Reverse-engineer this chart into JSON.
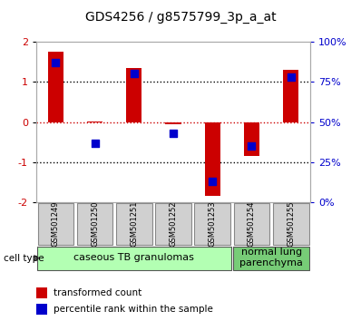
{
  "title": "GDS4256 / g8575799_3p_a_at",
  "samples": [
    "GSM501249",
    "GSM501250",
    "GSM501251",
    "GSM501252",
    "GSM501253",
    "GSM501254",
    "GSM501255"
  ],
  "transformed_counts": [
    1.75,
    0.02,
    1.35,
    -0.05,
    -1.85,
    -0.85,
    1.3
  ],
  "percentile_ranks": [
    87,
    37,
    80,
    43,
    13,
    35,
    78
  ],
  "ylim": [
    -2,
    2
  ],
  "yticks_left": [
    -2,
    -1,
    0,
    1,
    2
  ],
  "yticks_right": [
    0,
    25,
    50,
    75,
    100
  ],
  "bar_color": "#cc0000",
  "dot_color": "#0000cc",
  "groups": [
    {
      "label": "caseous TB granulomas",
      "start": 0,
      "end": 5,
      "color": "#b3ffb3"
    },
    {
      "label": "normal lung\nparenchyma",
      "start": 5,
      "end": 7,
      "color": "#77cc77"
    }
  ],
  "legend_items": [
    {
      "label": "transformed count",
      "color": "#cc0000"
    },
    {
      "label": "percentile rank within the sample",
      "color": "#0000cc"
    }
  ],
  "cell_type_label": "cell type",
  "bar_width": 0.4,
  "dot_size": 40,
  "tick_color_left": "#cc0000",
  "tick_color_right": "#0000cc",
  "title_fontsize": 10,
  "tick_fontsize": 8,
  "legend_fontsize": 7.5,
  "sample_fontsize": 6,
  "celltype_fontsize": 8,
  "bg_color": "#ffffff",
  "plot_bg": "#ffffff",
  "gray_box_color": "#d0d0d0"
}
